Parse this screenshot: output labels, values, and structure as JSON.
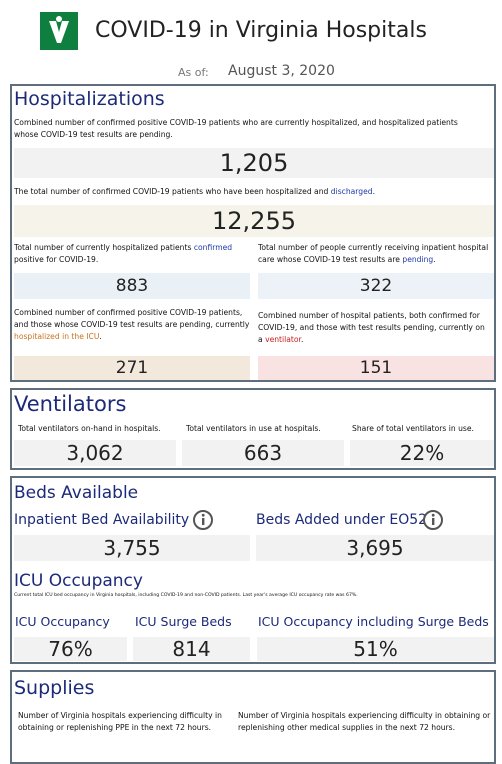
{
  "header": {
    "title": "COVID-19 in Virginia Hospitals",
    "as_of_label": "As of:",
    "as_of_date": "August 3, 2020"
  },
  "hospitalizations": {
    "title": "Hospitalizations",
    "current": {
      "description": [
        "Combined number of confirmed positive COVID-19 patients who are currently hospitalized, and hospitalized patients whose COVID-19 test results are pending."
      ],
      "value": "1,205"
    },
    "total": {
      "description": [
        "The total number of confirmed COVID-19 patients who have been hospitalized and ",
        "discharged",
        "."
      ],
      "value": "12,255"
    },
    "confirmed": {
      "description": [
        "Total number of currently hospitalized patients ",
        "confirmed",
        " positive for COVID-19."
      ],
      "value": "883"
    },
    "pending": {
      "description": [
        "Total number of people currently receiving inpatient hospital care whose COVID-19 test results are ",
        "pending",
        "."
      ],
      "value": "322"
    },
    "icu": {
      "description": [
        "Combined number of confirmed positive COVID-19 patients, and those whose COVID-19 test results are pending, currently ",
        "hospitalized in the ICU",
        "."
      ],
      "value": "271"
    },
    "ventilator": {
      "description": [
        "Combined number of hospital patients, both confirmed for COVID-19, and those with test results pending, currently on a ",
        "ventilator",
        "."
      ],
      "value": "151"
    }
  },
  "ventilators": {
    "title": "Ventilators",
    "items": [
      {
        "label": "Total ventilators on-hand in hospitals.",
        "value": "3,062"
      },
      {
        "label": "Total ventilators in use at hospitals.",
        "value": "663"
      },
      {
        "label": "Share of total ventilators in use.",
        "value": "22%"
      }
    ]
  },
  "beds": {
    "title": "Beds Available",
    "items": [
      {
        "label": "Inpatient Bed Availability",
        "value": "3,755"
      },
      {
        "label": "Beds Added under EO52",
        "value": "3,695"
      }
    ],
    "icu_title": "ICU Occupancy",
    "icu_note": "Current total ICU bed occupancy in Virginia hospitals, including COVID-19 and non-COVID patients. Last year's average ICU occupancy rate was 67%.",
    "icu_items": [
      {
        "label": "ICU Occupancy",
        "value": "76%"
      },
      {
        "label": "ICU Surge Beds",
        "value": "814"
      },
      {
        "label": "ICU Occupancy including Surge Beds",
        "value": "51%"
      }
    ]
  },
  "supplies": {
    "title": "Supplies",
    "items": [
      "Number of Virginia hospitals experiencing difficulty in obtaining or replenishing PPE in the next 72 hours.",
      "Number of Virginia hospitals experiencing difficulty in obtaining or replenishing other medical supplies in the next 72 hours."
    ]
  }
}
